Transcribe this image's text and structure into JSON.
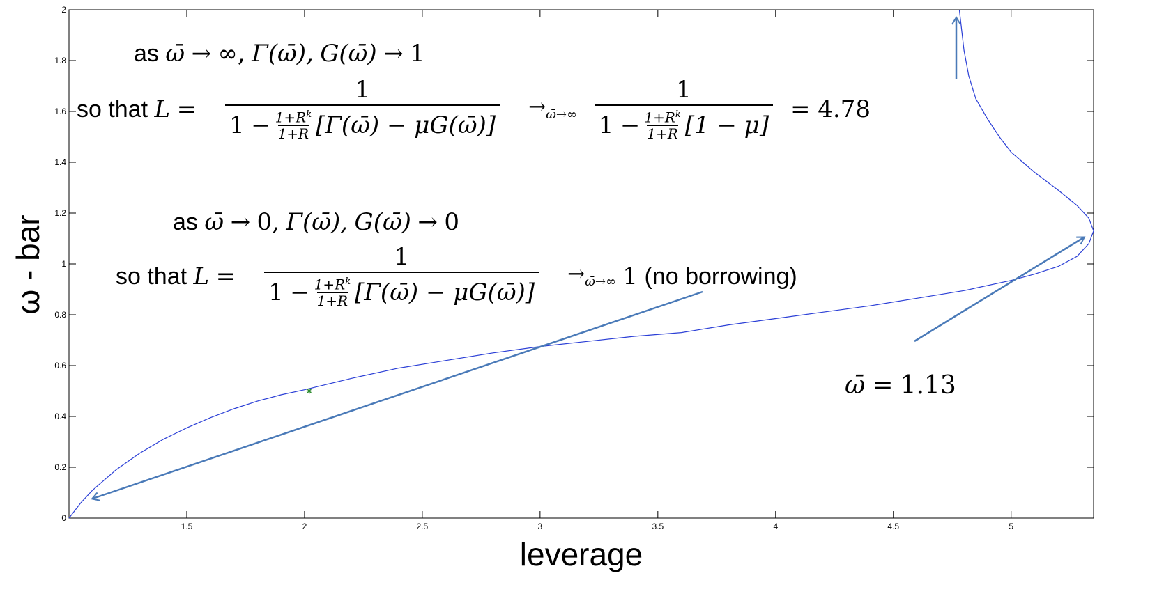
{
  "chart_data": {
    "type": "line",
    "xlabel": "leverage",
    "ylabel": "ω - bar",
    "xlim": [
      1.0,
      5.35
    ],
    "ylim": [
      0,
      2
    ],
    "x_ticks": [
      "1.5",
      "2",
      "2.5",
      "3",
      "3.5",
      "4",
      "4.5",
      "5"
    ],
    "y_ticks": [
      "0",
      "0.2",
      "0.4",
      "0.6",
      "0.8",
      "1",
      "1.2",
      "1.4",
      "1.6",
      "1.8",
      "2"
    ],
    "series": [
      {
        "x": [
          1.0,
          1.05,
          1.1,
          1.2,
          1.3,
          1.4,
          1.5,
          1.6,
          1.7,
          1.8,
          1.9,
          2.0,
          2.2,
          2.4,
          2.6,
          2.8,
          3.0,
          3.2,
          3.4,
          3.6,
          3.8,
          4.0,
          4.2,
          4.4,
          4.6,
          4.8,
          5.0,
          5.1,
          5.2,
          5.28,
          5.33,
          5.35,
          5.33,
          5.28,
          5.2,
          5.1,
          5.0,
          4.95,
          4.9,
          4.85,
          4.82,
          4.8,
          4.78
        ],
        "y": [
          0.0,
          0.06,
          0.11,
          0.19,
          0.255,
          0.31,
          0.355,
          0.395,
          0.43,
          0.46,
          0.485,
          0.505,
          0.55,
          0.59,
          0.62,
          0.65,
          0.675,
          0.695,
          0.715,
          0.73,
          0.76,
          0.785,
          0.81,
          0.835,
          0.865,
          0.895,
          0.935,
          0.96,
          0.99,
          1.03,
          1.08,
          1.13,
          1.18,
          1.23,
          1.29,
          1.36,
          1.44,
          1.5,
          1.57,
          1.65,
          1.74,
          1.84,
          2.0
        ]
      }
    ],
    "marker": {
      "x": 2.02,
      "y": 0.5,
      "color": "#2e8b2e"
    },
    "colors": {
      "curve": "#2b3fd6",
      "arrows": "#4a7ab8",
      "axis": "#000000"
    }
  },
  "annotations": {
    "a1": {
      "lead": "as",
      "omega": "ω̄",
      "arrow": "→",
      "infinity": "∞,",
      "gamma": "Γ(ω̄),",
      "g": "G(ω̄)",
      "arrow2": "→",
      "limit": "1"
    },
    "a2": {
      "lead": "so that",
      "L": "L",
      "eq": "=",
      "num": "1",
      "one": "1",
      "minus": "−",
      "sf_num": "1+R",
      "sf_sup": "k",
      "sf_den": "1+R",
      "bracket": "[Γ(ω̄) − μG(ω̄)]",
      "arrow": "→",
      "arrow_sub": "ω̄→∞",
      "num2": "1",
      "one2": "1",
      "minus2": "−",
      "bracket2": "[1 − μ]",
      "result": "= 4.78"
    },
    "a3": {
      "lead": "as",
      "omega": "ω̄",
      "arrow": "→",
      "zero": "0,",
      "gamma": "Γ(ω̄),",
      "g": "G(ω̄)",
      "arrow2": "→",
      "limit": "0"
    },
    "a4": {
      "lead": "so that",
      "L": "L",
      "eq": "=",
      "num": "1",
      "one": "1",
      "minus": "−",
      "sf_num": "1+R",
      "sf_sup": "k",
      "sf_den": "1+R",
      "bracket": "[Γ(ω̄) − μG(ω̄)]",
      "arrow": "→",
      "arrow_sub": "ω̄→∞",
      "result_num": "1",
      "result_text": "(no borrowing)"
    },
    "a5": {
      "omega": "ω̄",
      "eq": "=",
      "value": "1.13"
    }
  }
}
